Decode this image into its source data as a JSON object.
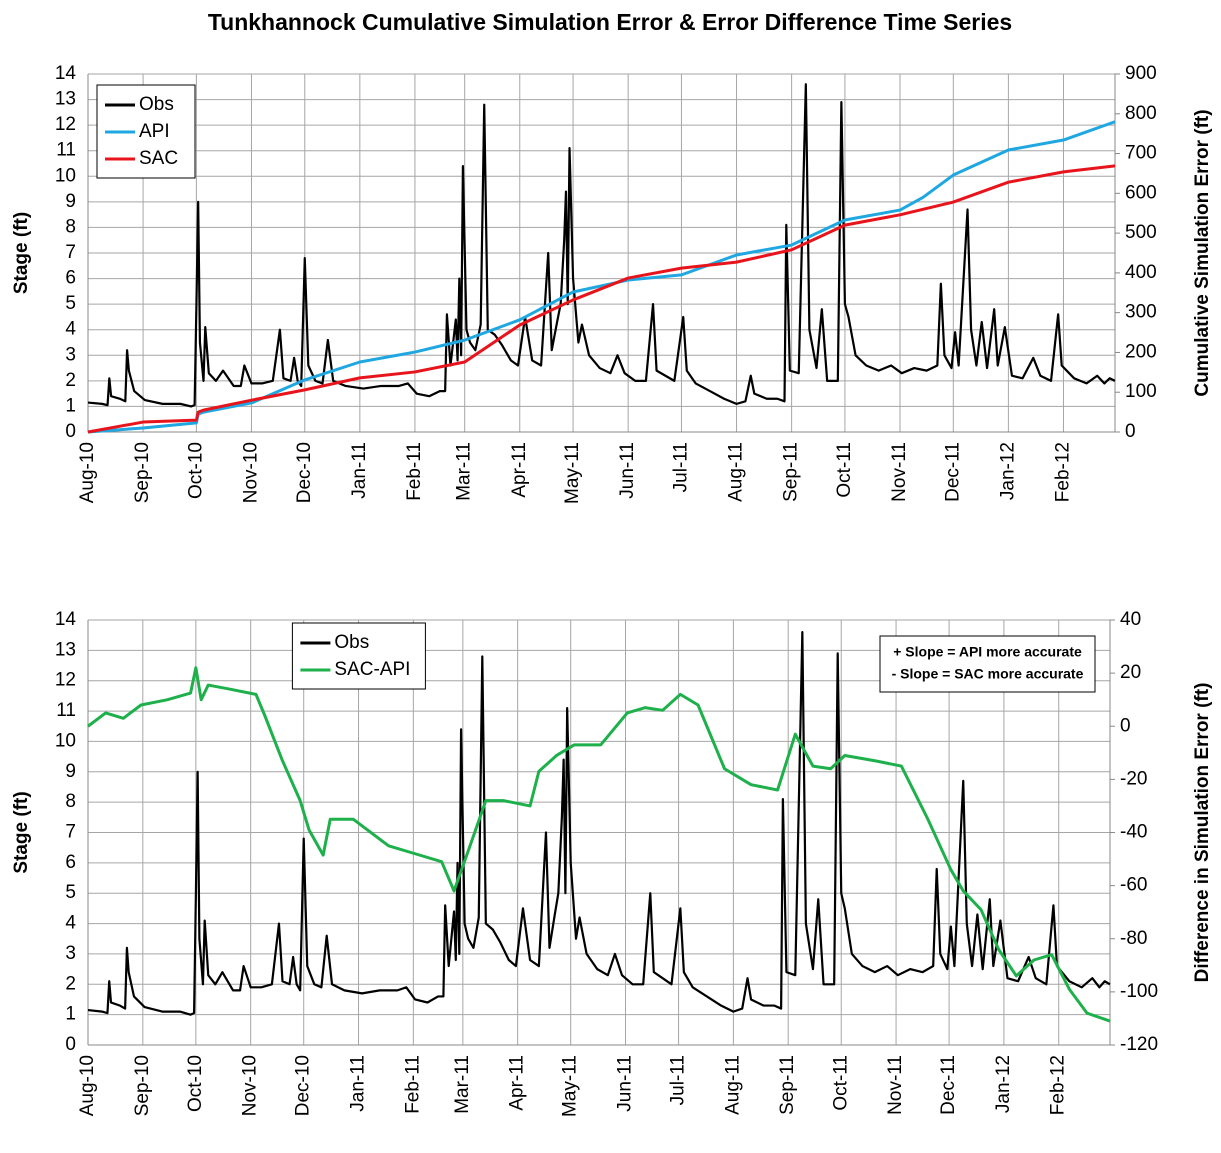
{
  "chart_data": [
    {
      "type": "line",
      "title": "Tunkhannock Cumulative Simulation Error & Error Difference Time Series",
      "ylabel": "Stage (ft)",
      "y2label": "Cumulative Simulation Error (ft)",
      "y2_label_color": "#7030a0",
      "xlim": [
        0,
        578
      ],
      "ylim": [
        0,
        14
      ],
      "y2lim": [
        0,
        900
      ],
      "xticks": [
        {
          "value": 0,
          "label": "Aug-10"
        },
        {
          "value": 31,
          "label": "Sep-10"
        },
        {
          "value": 61,
          "label": "Oct-10"
        },
        {
          "value": 92,
          "label": "Nov-10"
        },
        {
          "value": 122,
          "label": "Dec-10"
        },
        {
          "value": 153,
          "label": "Jan-11"
        },
        {
          "value": 184,
          "label": "Feb-11"
        },
        {
          "value": 212,
          "label": "Mar-11"
        },
        {
          "value": 243,
          "label": "Apr-11"
        },
        {
          "value": 273,
          "label": "May-11"
        },
        {
          "value": 304,
          "label": "Jun-11"
        },
        {
          "value": 334,
          "label": "Jul-11"
        },
        {
          "value": 365,
          "label": "Aug-11"
        },
        {
          "value": 396,
          "label": "Sep-11"
        },
        {
          "value": 426,
          "label": "Oct-11"
        },
        {
          "value": 457,
          "label": "Nov-11"
        },
        {
          "value": 487,
          "label": "Dec-11"
        },
        {
          "value": 518,
          "label": "Jan-12"
        },
        {
          "value": 549,
          "label": "Feb-12"
        }
      ],
      "yticks": [
        0,
        1,
        2,
        3,
        4,
        5,
        6,
        7,
        8,
        9,
        10,
        11,
        12,
        13,
        14
      ],
      "y2ticks": [
        0,
        100,
        200,
        300,
        400,
        500,
        600,
        700,
        800,
        900
      ],
      "grid": true,
      "legend": "upper left",
      "series": [
        {
          "name": "Obs",
          "color": "#000000",
          "x": [
            0,
            8,
            11,
            12,
            13,
            18,
            21,
            22,
            23,
            26,
            32,
            42,
            52,
            58,
            60,
            61,
            62,
            63,
            65,
            66,
            68,
            72,
            76,
            82,
            86,
            88,
            92,
            98,
            104,
            108,
            110,
            114,
            116,
            118,
            120,
            122,
            124,
            128,
            132,
            135,
            138,
            145,
            155,
            165,
            175,
            180,
            185,
            192,
            198,
            201,
            202,
            204,
            207,
            208,
            209,
            210,
            211,
            213,
            215,
            218,
            221,
            223,
            225,
            229,
            233,
            238,
            242,
            246,
            250,
            255,
            259,
            261,
            264,
            266,
            268,
            269,
            270,
            271,
            273,
            276,
            278,
            282,
            288,
            294,
            298,
            302,
            308,
            314,
            318,
            320,
            325,
            330,
            335,
            337,
            342,
            350,
            358,
            365,
            370,
            373,
            375,
            382,
            388,
            392,
            393,
            395,
            400,
            404,
            406,
            410,
            413,
            416,
            422,
            424,
            426,
            428,
            432,
            438,
            445,
            452,
            458,
            465,
            472,
            478,
            480,
            482,
            486,
            488,
            490,
            495,
            497,
            500,
            503,
            506,
            510,
            512,
            516,
            520,
            526,
            532,
            536,
            542,
            546,
            548,
            555,
            562,
            568,
            572,
            575,
            578
          ],
          "values": [
            1.15,
            1.1,
            1.05,
            2.1,
            1.4,
            1.3,
            1.2,
            3.2,
            2.4,
            1.6,
            1.25,
            1.1,
            1.1,
            1.0,
            1.05,
            4.9,
            9.0,
            3.5,
            2.0,
            4.1,
            2.3,
            2.0,
            2.4,
            1.8,
            1.8,
            2.6,
            1.9,
            1.9,
            2.0,
            4.0,
            2.1,
            2.0,
            2.9,
            2.0,
            1.8,
            6.8,
            2.6,
            2.0,
            1.9,
            3.6,
            2.0,
            1.8,
            1.7,
            1.8,
            1.8,
            1.9,
            1.5,
            1.4,
            1.6,
            1.6,
            4.6,
            2.6,
            4.4,
            2.8,
            6.0,
            3.0,
            10.4,
            4.0,
            3.5,
            3.2,
            4.2,
            12.8,
            4.0,
            3.8,
            3.4,
            2.8,
            2.6,
            4.5,
            2.8,
            2.6,
            7.0,
            3.2,
            4.3,
            5.0,
            7.5,
            9.4,
            5.0,
            11.1,
            6.0,
            3.5,
            4.2,
            3.0,
            2.5,
            2.3,
            3.0,
            2.3,
            2.0,
            2.0,
            5.0,
            2.4,
            2.2,
            2.0,
            4.5,
            2.4,
            1.9,
            1.6,
            1.3,
            1.1,
            1.2,
            2.2,
            1.5,
            1.3,
            1.3,
            1.2,
            8.1,
            2.4,
            2.3,
            13.6,
            4.0,
            2.5,
            4.8,
            2.0,
            2.0,
            12.9,
            5.0,
            4.5,
            3.0,
            2.6,
            2.4,
            2.6,
            2.3,
            2.5,
            2.4,
            2.6,
            5.8,
            3.0,
            2.5,
            3.9,
            2.6,
            8.7,
            4.0,
            2.6,
            4.3,
            2.5,
            4.8,
            2.6,
            4.1,
            2.2,
            2.1,
            2.9,
            2.2,
            2.0,
            4.6,
            2.6,
            2.1,
            1.9,
            2.2,
            1.9,
            2.1,
            2.0
          ]
        },
        {
          "name": "API",
          "color": "#1ea7e0",
          "axis": "y2",
          "x": [
            0,
            31,
            61,
            62,
            65,
            92,
            122,
            153,
            184,
            212,
            243,
            273,
            304,
            334,
            365,
            396,
            426,
            457,
            470,
            487,
            518,
            549,
            578
          ],
          "values": [
            0,
            10,
            23,
            45,
            50,
            73,
            131,
            176,
            201,
            231,
            282,
            352,
            382,
            395,
            445,
            470,
            533,
            558,
            590,
            646,
            709,
            734,
            780
          ]
        },
        {
          "name": "SAC",
          "color": "#e8141c",
          "axis": "y2",
          "x": [
            0,
            31,
            61,
            62,
            65,
            92,
            122,
            153,
            184,
            212,
            243,
            273,
            304,
            334,
            365,
            396,
            426,
            457,
            487,
            518,
            549,
            578
          ],
          "values": [
            0,
            25,
            30,
            50,
            55,
            80,
            106,
            136,
            151,
            176,
            269,
            332,
            387,
            412,
            427,
            458,
            520,
            546,
            578,
            628,
            654,
            669
          ]
        }
      ]
    },
    {
      "type": "line",
      "ylabel": "Stage (ft)",
      "y2label": "Difference in Simulation Error (ft)",
      "y2_label_color": "#1db04b",
      "xlim": [
        0,
        578
      ],
      "ylim": [
        0,
        14
      ],
      "y2lim": [
        -120,
        40
      ],
      "xticks": [
        {
          "value": 0,
          "label": "Aug-10"
        },
        {
          "value": 31,
          "label": "Sep-10"
        },
        {
          "value": 61,
          "label": "Oct-10"
        },
        {
          "value": 92,
          "label": "Nov-10"
        },
        {
          "value": 122,
          "label": "Dec-10"
        },
        {
          "value": 153,
          "label": "Jan-11"
        },
        {
          "value": 184,
          "label": "Feb-11"
        },
        {
          "value": 212,
          "label": "Mar-11"
        },
        {
          "value": 243,
          "label": "Apr-11"
        },
        {
          "value": 273,
          "label": "May-11"
        },
        {
          "value": 304,
          "label": "Jun-11"
        },
        {
          "value": 334,
          "label": "Jul-11"
        },
        {
          "value": 365,
          "label": "Aug-11"
        },
        {
          "value": 396,
          "label": "Sep-11"
        },
        {
          "value": 426,
          "label": "Oct-11"
        },
        {
          "value": 457,
          "label": "Nov-11"
        },
        {
          "value": 487,
          "label": "Dec-11"
        },
        {
          "value": 518,
          "label": "Jan-12"
        },
        {
          "value": 549,
          "label": "Feb-12"
        }
      ],
      "yticks": [
        0,
        1,
        2,
        3,
        4,
        5,
        6,
        7,
        8,
        9,
        10,
        11,
        12,
        13,
        14
      ],
      "y2ticks": [
        -120,
        -100,
        -80,
        -60,
        -40,
        -20,
        0,
        20,
        40
      ],
      "grid": true,
      "legend": "upper center",
      "annotations": [
        "+ Slope = API more accurate",
        "- Slope = SAC more accurate"
      ],
      "annotation_color": "#1db04b",
      "series": [
        {
          "name": "Obs",
          "color": "#000000",
          "x": [
            0,
            8,
            11,
            12,
            13,
            18,
            21,
            22,
            23,
            26,
            32,
            42,
            52,
            58,
            60,
            61,
            62,
            63,
            65,
            66,
            68,
            72,
            76,
            82,
            86,
            88,
            92,
            98,
            104,
            108,
            110,
            114,
            116,
            118,
            120,
            122,
            124,
            128,
            132,
            135,
            138,
            145,
            155,
            165,
            175,
            180,
            185,
            192,
            198,
            201,
            202,
            204,
            207,
            208,
            209,
            210,
            211,
            213,
            215,
            218,
            221,
            223,
            225,
            229,
            233,
            238,
            242,
            246,
            250,
            255,
            259,
            261,
            264,
            266,
            268,
            269,
            270,
            271,
            273,
            276,
            278,
            282,
            288,
            294,
            298,
            302,
            308,
            314,
            318,
            320,
            325,
            330,
            335,
            337,
            342,
            350,
            358,
            365,
            370,
            373,
            375,
            382,
            388,
            392,
            393,
            395,
            400,
            404,
            406,
            410,
            413,
            416,
            422,
            424,
            426,
            428,
            432,
            438,
            445,
            452,
            458,
            465,
            472,
            478,
            480,
            482,
            486,
            488,
            490,
            495,
            497,
            500,
            503,
            506,
            510,
            512,
            516,
            520,
            526,
            532,
            536,
            542,
            546,
            548,
            555,
            562,
            568,
            572,
            575,
            578
          ],
          "values": [
            1.15,
            1.1,
            1.05,
            2.1,
            1.4,
            1.3,
            1.2,
            3.2,
            2.4,
            1.6,
            1.25,
            1.1,
            1.1,
            1.0,
            1.05,
            4.9,
            9.0,
            3.5,
            2.0,
            4.1,
            2.3,
            2.0,
            2.4,
            1.8,
            1.8,
            2.6,
            1.9,
            1.9,
            2.0,
            4.0,
            2.1,
            2.0,
            2.9,
            2.0,
            1.8,
            6.8,
            2.6,
            2.0,
            1.9,
            3.6,
            2.0,
            1.8,
            1.7,
            1.8,
            1.8,
            1.9,
            1.5,
            1.4,
            1.6,
            1.6,
            4.6,
            2.6,
            4.4,
            2.8,
            6.0,
            3.0,
            10.4,
            4.0,
            3.5,
            3.2,
            4.2,
            12.8,
            4.0,
            3.8,
            3.4,
            2.8,
            2.6,
            4.5,
            2.8,
            2.6,
            7.0,
            3.2,
            4.3,
            5.0,
            7.5,
            9.4,
            5.0,
            11.1,
            6.0,
            3.5,
            4.2,
            3.0,
            2.5,
            2.3,
            3.0,
            2.3,
            2.0,
            2.0,
            5.0,
            2.4,
            2.2,
            2.0,
            4.5,
            2.4,
            1.9,
            1.6,
            1.3,
            1.1,
            1.2,
            2.2,
            1.5,
            1.3,
            1.3,
            1.2,
            8.1,
            2.4,
            2.3,
            13.6,
            4.0,
            2.5,
            4.8,
            2.0,
            2.0,
            12.9,
            5.0,
            4.5,
            3.0,
            2.6,
            2.4,
            2.6,
            2.3,
            2.5,
            2.4,
            2.6,
            5.8,
            3.0,
            2.5,
            3.9,
            2.6,
            8.7,
            4.0,
            2.6,
            4.3,
            2.5,
            4.8,
            2.6,
            4.1,
            2.2,
            2.1,
            2.9,
            2.2,
            2.0,
            4.6,
            2.6,
            2.1,
            1.9,
            2.2,
            1.9,
            2.1,
            2.0
          ]
        },
        {
          "name": "SAC-API",
          "color": "#1db04b",
          "axis": "y2",
          "x": [
            0,
            10,
            20,
            30,
            45,
            58,
            61,
            64,
            68,
            80,
            95,
            100,
            110,
            120,
            125,
            133,
            137,
            150,
            170,
            185,
            200,
            207,
            215,
            225,
            235,
            250,
            255,
            265,
            275,
            290,
            305,
            315,
            325,
            335,
            345,
            360,
            375,
            390,
            400,
            410,
            420,
            428,
            445,
            460,
            475,
            488,
            495,
            505,
            515,
            525,
            535,
            545,
            555,
            565,
            578
          ],
          "values": [
            0,
            5,
            3,
            8,
            10,
            12.5,
            22,
            10,
            15.5,
            14,
            12,
            4,
            -13,
            -28,
            -39,
            -48.5,
            -35,
            -35,
            -45,
            -48,
            -51,
            -62,
            -47,
            -28,
            -28,
            -30,
            -17,
            -11,
            -7,
            -7,
            5,
            7,
            6,
            12,
            8,
            -16,
            -22,
            -24,
            -3,
            -15,
            -16,
            -11,
            -13,
            -15,
            -35,
            -54,
            -62,
            -69,
            -84,
            -94,
            -88,
            -86,
            -99,
            -108,
            -111
          ]
        }
      ]
    }
  ]
}
